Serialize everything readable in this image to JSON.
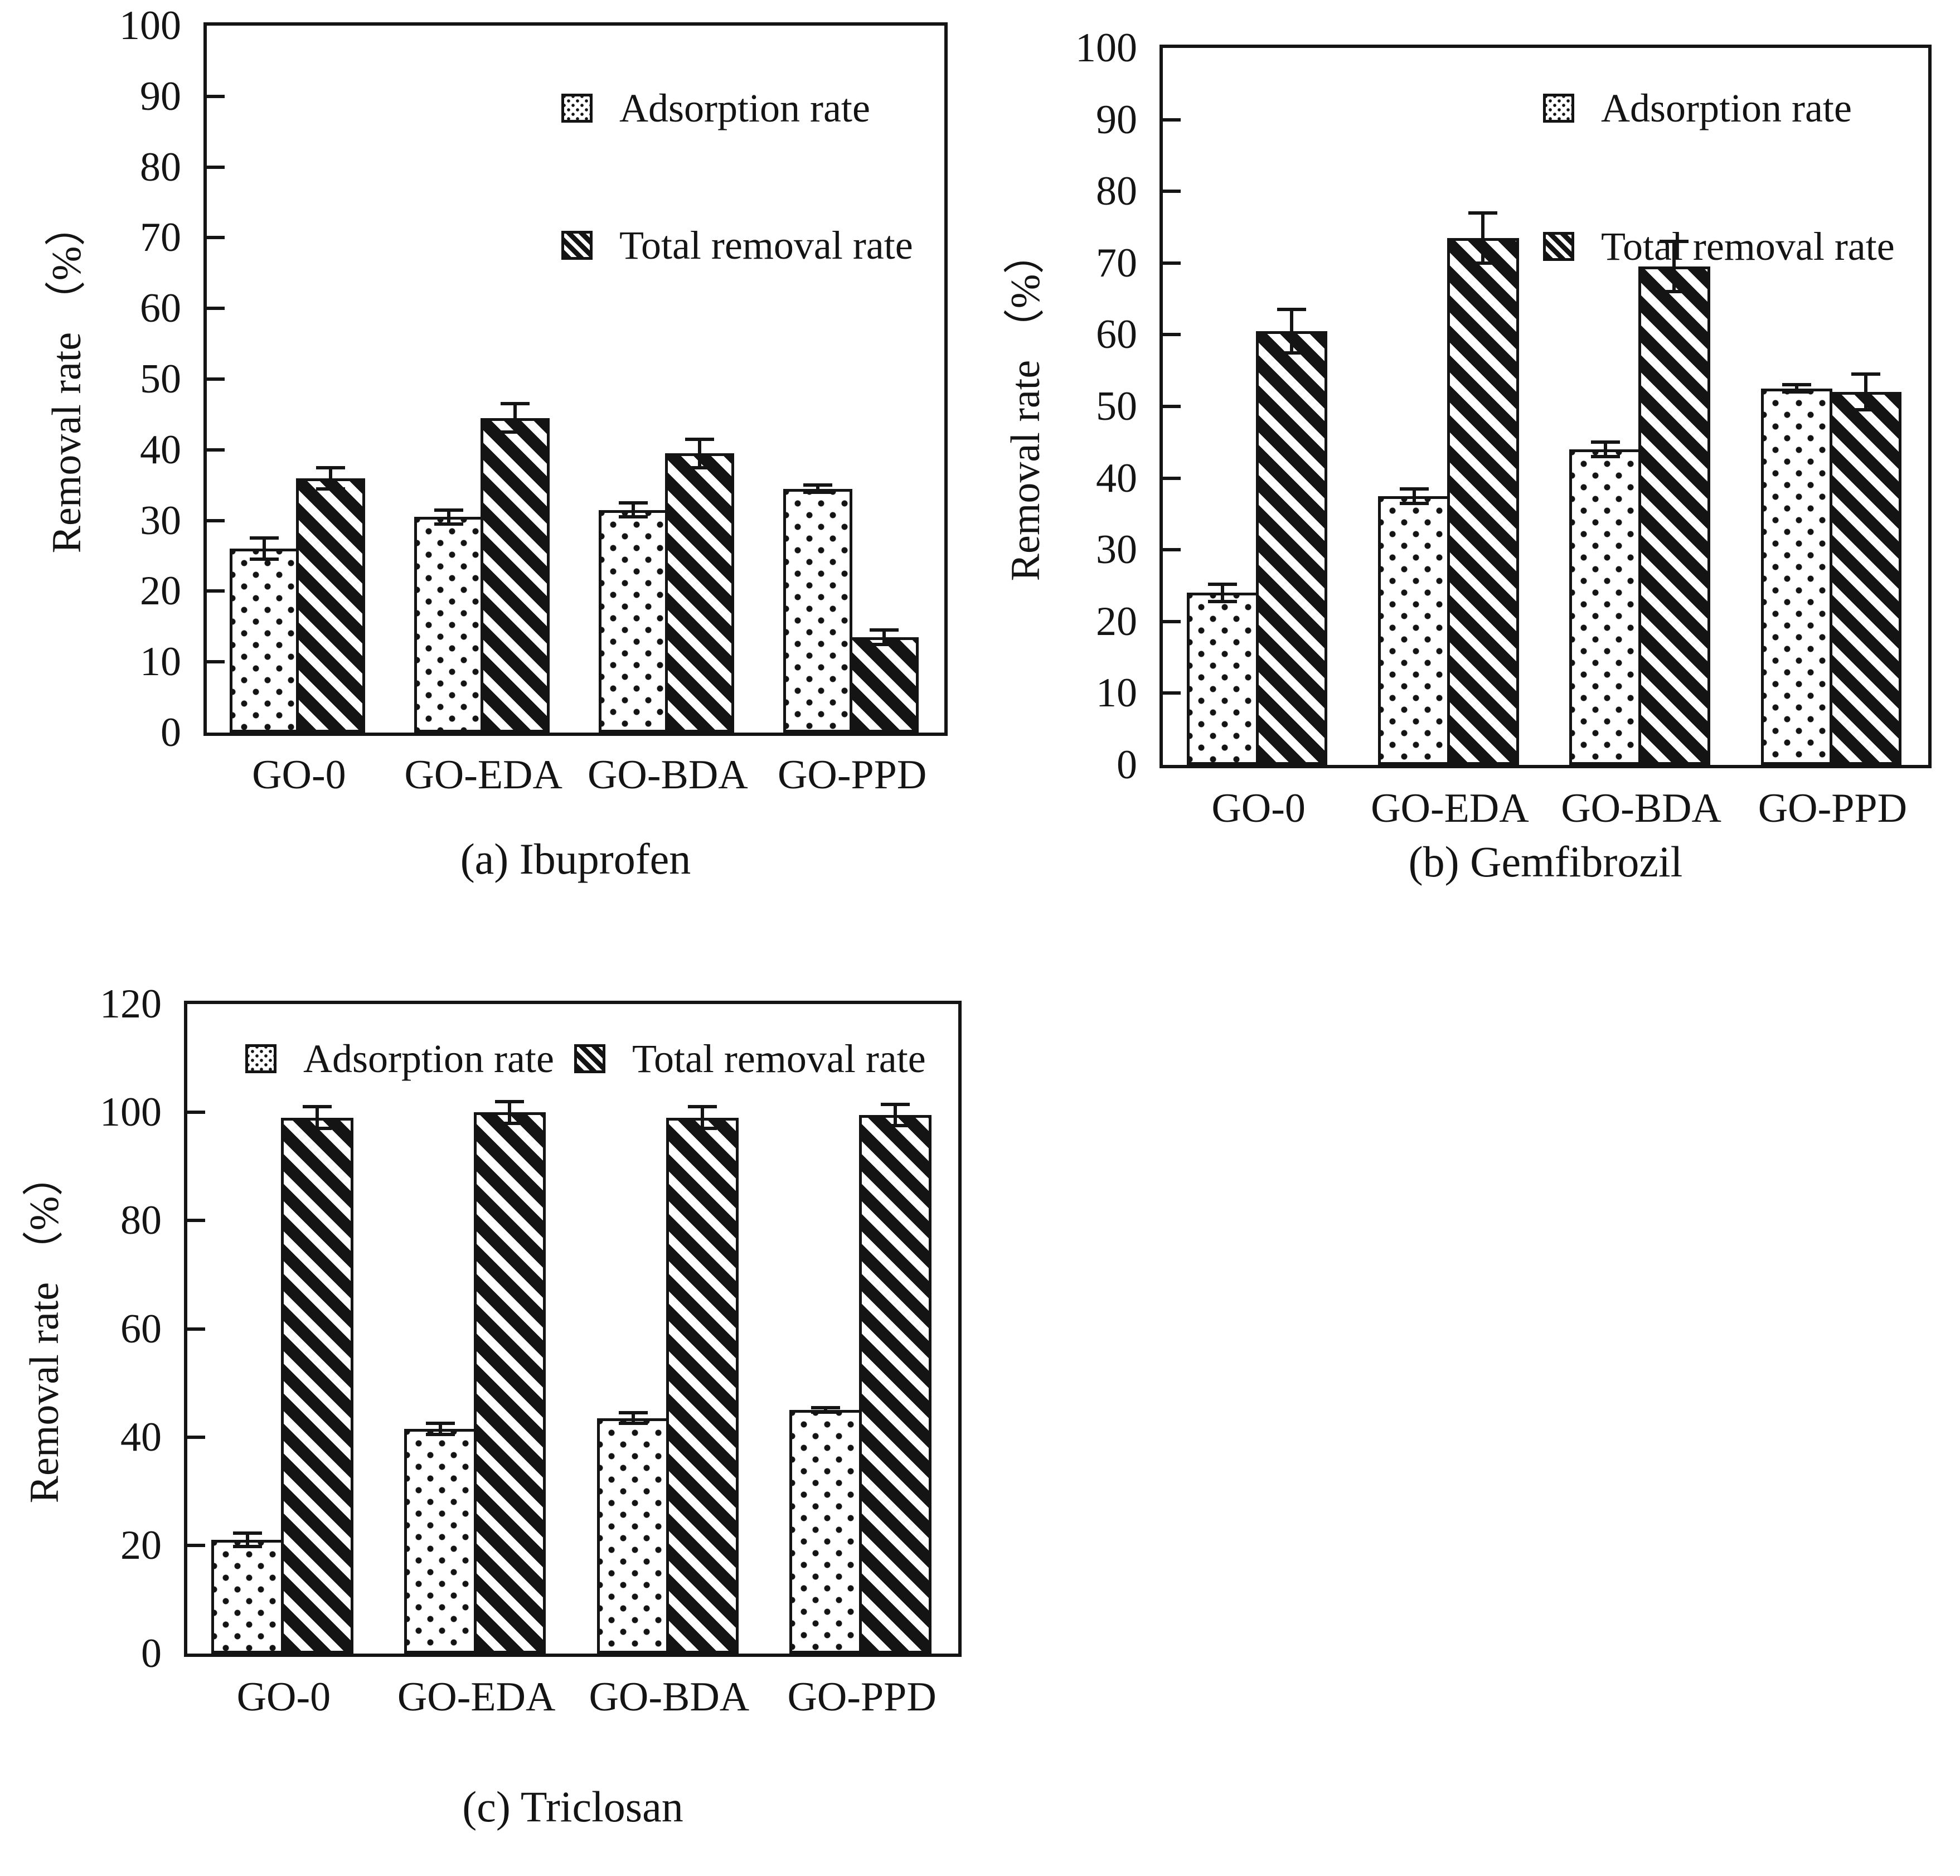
{
  "figure": {
    "background": "#ffffff",
    "ink_color": "#141414",
    "legend_labels": {
      "adsorption": "Adsorption rate",
      "total": "Total removal rate"
    }
  },
  "chart_data": [
    {
      "id": "a",
      "type": "bar",
      "caption": "(a) Ibuprofen",
      "ylabel": "Removal rate （%）",
      "ylim": [
        0,
        100
      ],
      "yticks": [
        0,
        10,
        20,
        30,
        40,
        50,
        60,
        70,
        80,
        90,
        100
      ],
      "categories": [
        "GO-0",
        "GO-EDA",
        "GO-BDA",
        "GO-PPD"
      ],
      "grid": false,
      "legend_position": "top-right-stacked",
      "series": [
        {
          "name": "Adsorption rate",
          "pattern": "dots",
          "values": [
            26,
            30.5,
            31.5,
            34.5
          ],
          "errors": [
            1.5,
            1,
            1,
            0.5
          ]
        },
        {
          "name": "Total removal rate",
          "pattern": "hatch",
          "values": [
            36,
            44.5,
            39.5,
            13.5
          ],
          "errors": [
            1.5,
            2,
            2,
            1
          ]
        }
      ]
    },
    {
      "id": "b",
      "type": "bar",
      "caption": "(b) Gemfibrozil",
      "ylabel": "Removal rate （%）",
      "ylim": [
        0,
        100
      ],
      "yticks": [
        0,
        10,
        20,
        30,
        40,
        50,
        60,
        70,
        80,
        90,
        100
      ],
      "categories": [
        "GO-0",
        "GO-EDA",
        "GO-BDA",
        "GO-PPD"
      ],
      "grid": false,
      "legend_position": "top-right-stacked",
      "series": [
        {
          "name": "Adsorption rate",
          "pattern": "dots",
          "values": [
            24,
            37.5,
            44,
            52.5
          ],
          "errors": [
            1.2,
            1,
            1,
            0.5
          ]
        },
        {
          "name": "Total removal rate",
          "pattern": "hatch",
          "values": [
            60.5,
            73.5,
            69.5,
            52
          ],
          "errors": [
            3,
            3.5,
            3.5,
            2.5
          ]
        }
      ]
    },
    {
      "id": "c",
      "type": "bar",
      "caption": "(c) Triclosan",
      "ylabel": "Removal rate （%）",
      "ylim": [
        0,
        120
      ],
      "yticks": [
        0,
        20,
        40,
        60,
        80,
        100,
        120
      ],
      "categories": [
        "GO-0",
        "GO-EDA",
        "GO-BDA",
        "GO-PPD"
      ],
      "grid": false,
      "legend_position": "top-row",
      "series": [
        {
          "name": "Adsorption rate",
          "pattern": "dots",
          "values": [
            21,
            41.5,
            43.5,
            45
          ],
          "errors": [
            1.2,
            1,
            1,
            0.4
          ]
        },
        {
          "name": "Total removal rate",
          "pattern": "hatch",
          "values": [
            99,
            100,
            99,
            99.5
          ],
          "errors": [
            2,
            2,
            2,
            2
          ]
        }
      ]
    }
  ]
}
